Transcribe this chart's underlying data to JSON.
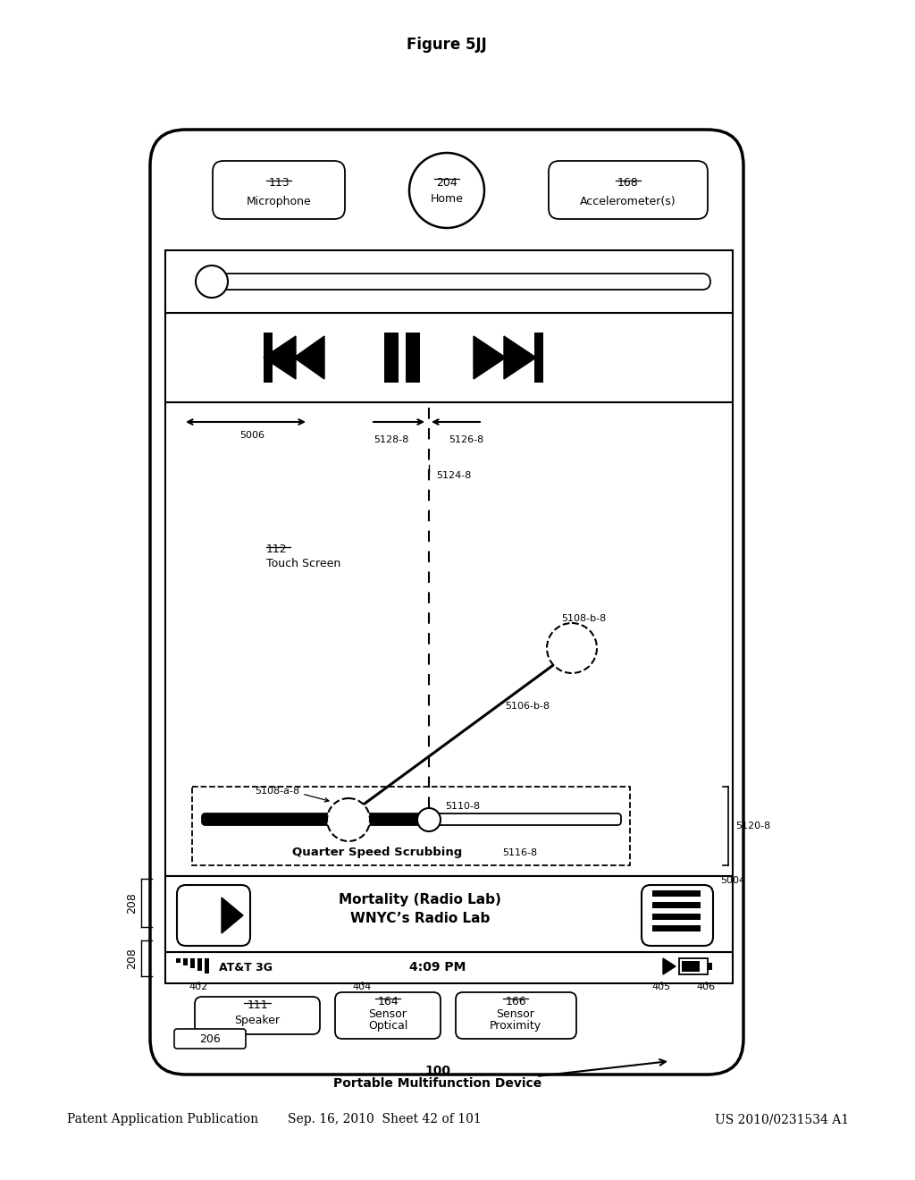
{
  "header_left": "Patent Application Publication",
  "header_mid": "Sep. 16, 2010  Sheet 42 of 101",
  "header_right": "US 2010/0231534 A1",
  "device_label": "Portable Multifunction Device",
  "device_number": "100",
  "figure_label": "Figure 5JJ",
  "bg_color": "#ffffff",
  "label_206": "206",
  "label_208a": "208",
  "label_208b": "208",
  "label_402": "402",
  "label_404": "404",
  "label_405": "405",
  "label_406": "406",
  "label_5004": "5004",
  "label_5116_8": "5116-8",
  "label_5110_8": "5110-8",
  "label_5108_a_8": "5108-a-8",
  "label_5106_b_8": "5106-b-8",
  "label_5108_b_8": "5108-b-8",
  "label_5120_8": "5120-8",
  "label_5124_8": "5124-8",
  "label_5128_8": "5128-8",
  "label_5126_8": "5126-8",
  "label_5006": "5006",
  "label_ts": "Touch Screen",
  "label_ts2": "112",
  "nav_title1": "WNYC’s Radio Lab",
  "nav_title2": "Mortality (Radio Lab)",
  "scrub_label": "Quarter Speed Scrubbing",
  "signal_text": "AT&T 3G",
  "time_text": "4:09 PM",
  "speaker_text1": "Speaker",
  "speaker_text2": "111",
  "optical_text1": "Optical",
  "optical_text2": "Sensor",
  "optical_text3": "164",
  "proximity_text1": "Proximity",
  "proximity_text2": "Sensor",
  "proximity_text3": "166",
  "mic_text1": "Microphone",
  "mic_text2": "113",
  "home_text1": "Home",
  "home_text2": "204",
  "accel_text1": "Accelerometer(s)",
  "accel_text2": "168"
}
